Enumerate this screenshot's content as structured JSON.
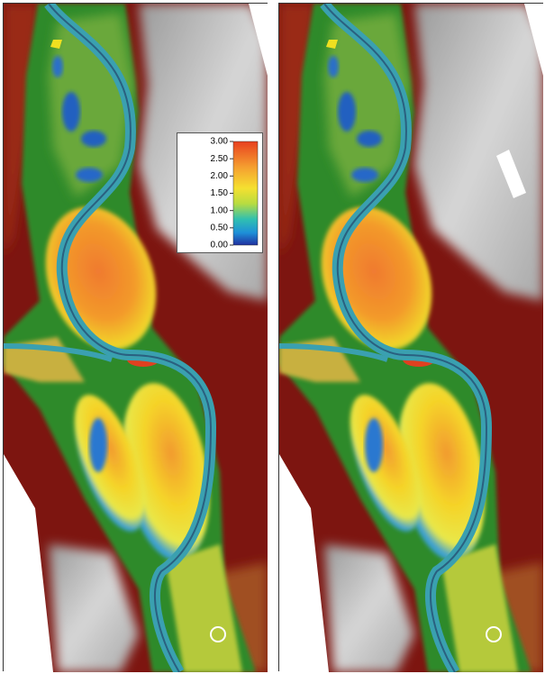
{
  "legend": {
    "ticks": [
      {
        "value": 3,
        "label": "3.00"
      },
      {
        "value": 2.5,
        "label": "2.50"
      },
      {
        "value": 2,
        "label": "2.00"
      },
      {
        "value": 1.5,
        "label": "1.50"
      },
      {
        "value": 1,
        "label": "1.00"
      },
      {
        "value": 0.5,
        "label": "0.50"
      },
      {
        "value": 0,
        "label": "0.00"
      }
    ]
  }
}
